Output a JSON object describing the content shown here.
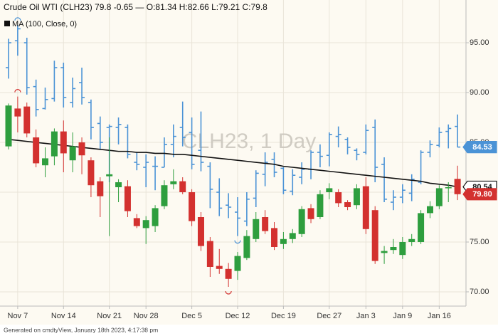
{
  "chart_data": {
    "type": "candlestick",
    "title": "Crude Oil WTI (CLH23) 79.8 -0.65 — O:81.34 H:82.66 L:79.21 C:79.8",
    "watermark": "CLH23, 1 Day",
    "footer": "Generated on cmdtyView, January 18th 2023, 4:17:38 pm",
    "categories": [
      null,
      "Nov 7",
      null,
      null,
      null,
      null,
      "Nov 14",
      null,
      null,
      null,
      null,
      "Nov 21",
      null,
      null,
      null,
      "Nov 28",
      null,
      null,
      null,
      null,
      "Dec 5",
      null,
      null,
      null,
      null,
      "Dec 12",
      null,
      null,
      null,
      null,
      "Dec 19",
      null,
      null,
      null,
      null,
      "Dec 27",
      null,
      null,
      null,
      "Jan 3",
      null,
      null,
      null,
      "Jan 9",
      null,
      null,
      null,
      "Jan 16",
      null,
      null
    ],
    "ylim": [
      68.57,
      99.29
    ],
    "yticks": [
      {
        "value": 70,
        "label": "70.00"
      },
      {
        "value": 75,
        "label": "75.00"
      },
      {
        "value": 80,
        "label": "80.00"
      },
      {
        "value": 85,
        "label": "85.00"
      },
      {
        "value": 90,
        "label": "90.00"
      },
      {
        "value": 95,
        "label": "95.00"
      }
    ],
    "grid": true,
    "series": [
      {
        "style": "ohlc",
        "color": "#4b93d6",
        "open": [
          92.5,
          95.2,
          95.0,
          90.6,
          88.4,
          89.4,
          92.5,
          89.0,
          91.0,
          89.0,
          86.9,
          86.5,
          86.5,
          86.5,
          83.0,
          82.5,
          82.6,
          82.5,
          84.8,
          86.5,
          86.0,
          84.2,
          82.6,
          80.0,
          78.7,
          78.0,
          77.1,
          79.4,
          81.8,
          83.3,
          82.4,
          80.1,
          81.5,
          82.3,
          84.0,
          83.7,
          85.6,
          85.3,
          84.2,
          84.0,
          86.5,
          82.8,
          79.0,
          79.5,
          79.9,
          81.0,
          84.0,
          84.7,
          86.1,
          86.6
        ],
        "high": [
          95.4,
          96.8,
          95.5,
          91.3,
          90.5,
          93.2,
          93.0,
          91.5,
          92.5,
          89.3,
          87.6,
          86.8,
          87.5,
          86.8,
          84.0,
          83.8,
          83.6,
          85.5,
          86.8,
          89.1,
          87.5,
          88.1,
          83.0,
          81.4,
          79.9,
          79.5,
          80.0,
          82.2,
          84.0,
          84.0,
          82.5,
          82.3,
          83.0,
          84.2,
          84.8,
          86.0,
          86.6,
          85.5,
          84.4,
          86.8,
          87.3,
          83.5,
          80.2,
          80.8,
          81.8,
          84.2,
          85.2,
          86.5,
          86.8,
          87.8
        ],
        "low": [
          91.4,
          93.7,
          89.8,
          87.6,
          88.3,
          89.1,
          88.5,
          88.5,
          88.8,
          85.3,
          84.3,
          81.0,
          84.8,
          83.4,
          82.2,
          80.5,
          80.2,
          82.5,
          83.5,
          84.6,
          82.3,
          82.1,
          78.4,
          77.6,
          77.4,
          75.6,
          76.6,
          78.5,
          80.6,
          81.5,
          79.8,
          79.7,
          80.8,
          81.3,
          82.5,
          82.6,
          84.5,
          83.8,
          83.2,
          83.8,
          81.0,
          79.0,
          78.2,
          78.9,
          79.1,
          80.8,
          83.5,
          84.5,
          84.4,
          84.5
        ],
        "close": [
          95.0,
          96.4,
          90.5,
          88.3,
          89.3,
          92.5,
          89.5,
          90.4,
          89.5,
          86.5,
          85.0,
          86.6,
          86.8,
          83.8,
          82.8,
          83.0,
          82.6,
          84.8,
          85.6,
          85.5,
          82.8,
          83.0,
          80.3,
          78.4,
          78.5,
          77.4,
          79.3,
          81.9,
          83.0,
          82.0,
          80.2,
          81.7,
          82.3,
          84.0,
          83.6,
          85.8,
          85.8,
          84.5,
          83.8,
          86.2,
          82.5,
          79.3,
          79.5,
          80.2,
          81.3,
          84.0,
          84.8,
          86.0,
          86.4,
          84.53
        ]
      },
      {
        "style": "candlestick",
        "up_color": "#2e9e3e",
        "down_color": "#d3312f",
        "last_value_label": "79.80",
        "open": [
          84.6,
          88.4,
          88.6,
          85.5,
          82.7,
          83.6,
          86.1,
          83.2,
          85.0,
          83.2,
          81.1,
          81.6,
          80.5,
          80.6,
          77.4,
          76.4,
          76.6,
          78.6,
          80.8,
          81.1,
          80.0,
          77.5,
          75.1,
          72.6,
          72.3,
          72.1,
          73.4,
          75.3,
          77.5,
          76.4,
          74.8,
          75.3,
          75.8,
          78.4,
          77.5,
          80.0,
          80.0,
          79.0,
          78.7,
          80.6,
          78.2,
          73.9,
          74.2,
          73.7,
          75.0,
          75.0,
          77.9,
          78.6,
          80.4,
          81.34
        ],
        "high": [
          88.9,
          89.6,
          89.0,
          86.3,
          84.5,
          86.4,
          87.2,
          86.0,
          85.5,
          83.5,
          81.5,
          85.5,
          81.3,
          81.2,
          77.8,
          77.6,
          78.7,
          81.2,
          82.3,
          81.5,
          80.3,
          78.0,
          75.5,
          74.3,
          72.9,
          74.0,
          76.2,
          78.0,
          78.2,
          77.0,
          76.0,
          76.3,
          78.6,
          78.8,
          80.2,
          80.9,
          80.3,
          79.2,
          80.8,
          81.5,
          78.6,
          74.6,
          75.3,
          75.5,
          75.8,
          78.2,
          79.1,
          80.7,
          81.0,
          82.66
        ],
        "low": [
          84.3,
          86.0,
          85.5,
          82.5,
          81.5,
          82.7,
          82.0,
          82.0,
          81.8,
          79.5,
          77.5,
          75.6,
          79.0,
          77.5,
          76.4,
          74.8,
          76.0,
          78.3,
          80.3,
          79.8,
          76.6,
          74.1,
          71.5,
          71.8,
          70.5,
          71.2,
          73.2,
          75.0,
          75.8,
          74.2,
          74.3,
          74.9,
          75.5,
          76.9,
          77.3,
          79.3,
          78.5,
          78.2,
          78.3,
          75.8,
          72.8,
          72.8,
          73.8,
          73.3,
          74.6,
          74.8,
          77.4,
          78.3,
          79.0,
          79.21
        ],
        "close": [
          88.7,
          87.6,
          85.9,
          82.9,
          83.4,
          86.1,
          83.9,
          84.6,
          83.7,
          80.7,
          79.6,
          81.8,
          81.0,
          78.1,
          76.6,
          77.2,
          78.4,
          80.7,
          81.1,
          80.0,
          77.1,
          74.6,
          72.5,
          72.3,
          71.3,
          73.6,
          75.6,
          77.3,
          76.1,
          74.5,
          75.3,
          75.9,
          78.3,
          77.3,
          79.8,
          80.4,
          78.9,
          78.5,
          80.4,
          76.3,
          73.1,
          74.1,
          74.5,
          75.0,
          75.3,
          77.9,
          78.6,
          80.4,
          80.5,
          79.8
        ]
      },
      {
        "style": "line",
        "name": "MA (100, Close, 0)",
        "color": "#111111",
        "values": [
          85.3,
          85.2,
          85.1,
          85.0,
          84.9,
          84.8,
          84.7,
          84.6,
          84.5,
          84.4,
          84.3,
          84.2,
          84.1,
          84.1,
          84.0,
          84.0,
          83.9,
          83.9,
          83.8,
          83.8,
          83.7,
          83.6,
          83.5,
          83.4,
          83.3,
          83.2,
          83.1,
          83.0,
          82.9,
          82.8,
          82.6,
          82.5,
          82.4,
          82.3,
          82.2,
          82.1,
          82.0,
          81.9,
          81.8,
          81.7,
          81.6,
          81.5,
          81.4,
          81.3,
          81.2,
          81.1,
          80.9,
          80.8,
          80.7,
          80.54
        ]
      }
    ]
  }
}
